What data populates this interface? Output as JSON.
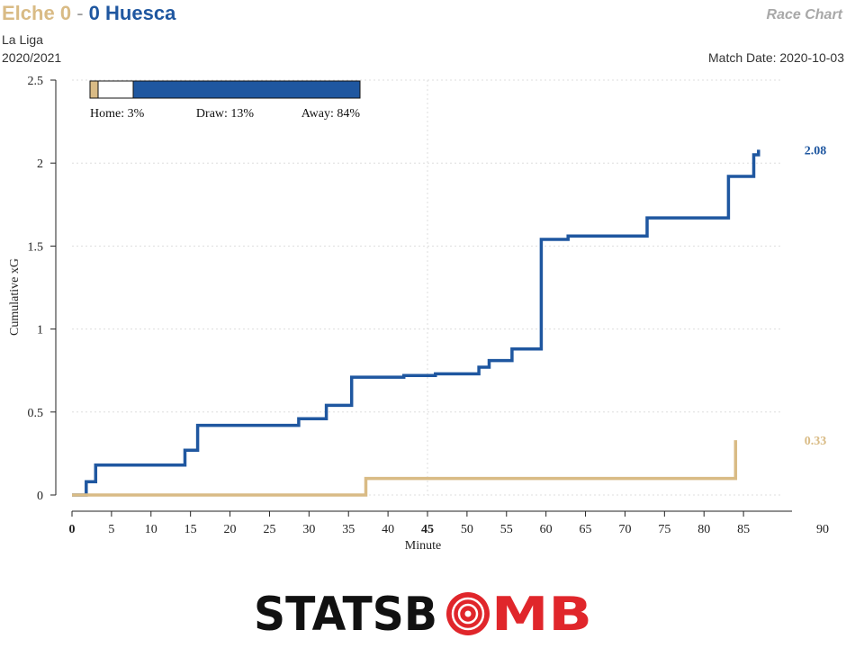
{
  "header": {
    "home_team": "Elche",
    "home_score": "0",
    "separator": "-",
    "away_score": "0",
    "away_team": "Huesca",
    "competition": "La Liga",
    "season": "2020/2021",
    "chart_label": "Race Chart",
    "match_date": "Match Date: 2020-10-03"
  },
  "colors": {
    "home": "#d9bb85",
    "away": "#1f57a0",
    "grid": "#dddddd"
  },
  "logo": {
    "text_left": "STATSB",
    "text_mid": "O",
    "text_right": "MB",
    "icon": "target-icon"
  },
  "chart_data": {
    "type": "line",
    "xlabel": "Minute",
    "ylabel": "Cumulative xG",
    "xlim": [
      0,
      90
    ],
    "ylim": [
      0,
      2.5
    ],
    "x_ticks": [
      0,
      5,
      10,
      15,
      20,
      25,
      30,
      35,
      40,
      45,
      50,
      55,
      60,
      65,
      70,
      75,
      80,
      85,
      90
    ],
    "y_ticks": [
      0,
      0.5,
      1,
      1.5,
      2,
      2.5
    ],
    "y_tick_labels": [
      "0",
      "0.5",
      "1",
      "1.5",
      "2",
      "2.5"
    ],
    "bold_x_ticks": [
      0,
      45
    ],
    "vertical_markers": [
      45
    ],
    "win_probability": {
      "home": 3,
      "draw": 13,
      "away": 84,
      "home_label": "Home: 3%",
      "draw_label": "Draw: 13%",
      "away_label": "Away: 84%"
    },
    "series": [
      {
        "side": "away",
        "points": [
          [
            0,
            0
          ],
          [
            1.8,
            0
          ],
          [
            1.8,
            0.08
          ],
          [
            3,
            0.08
          ],
          [
            3,
            0.18
          ],
          [
            14.3,
            0.18
          ],
          [
            14.3,
            0.27
          ],
          [
            15.9,
            0.27
          ],
          [
            15.9,
            0.42
          ],
          [
            28.7,
            0.42
          ],
          [
            28.7,
            0.46
          ],
          [
            32.2,
            0.46
          ],
          [
            32.2,
            0.54
          ],
          [
            35.4,
            0.54
          ],
          [
            35.4,
            0.71
          ],
          [
            42,
            0.71
          ],
          [
            42,
            0.72
          ],
          [
            46,
            0.72
          ],
          [
            46,
            0.73
          ],
          [
            51.5,
            0.73
          ],
          [
            51.5,
            0.77
          ],
          [
            52.8,
            0.77
          ],
          [
            52.8,
            0.81
          ],
          [
            55.7,
            0.81
          ],
          [
            55.7,
            0.88
          ],
          [
            59.4,
            0.88
          ],
          [
            59.4,
            1.54
          ],
          [
            62.8,
            1.54
          ],
          [
            62.8,
            1.56
          ],
          [
            72.8,
            1.56
          ],
          [
            72.8,
            1.67
          ],
          [
            83.1,
            1.67
          ],
          [
            83.1,
            1.92
          ],
          [
            86.3,
            1.92
          ],
          [
            86.3,
            2.05
          ],
          [
            86.9,
            2.05
          ],
          [
            86.9,
            2.08
          ]
        ],
        "final_label": "2.08"
      },
      {
        "side": "home",
        "points": [
          [
            0,
            0
          ],
          [
            37.2,
            0
          ],
          [
            37.2,
            0.1
          ],
          [
            84,
            0.1
          ],
          [
            84,
            0.33
          ]
        ],
        "final_label": "0.33"
      }
    ]
  }
}
